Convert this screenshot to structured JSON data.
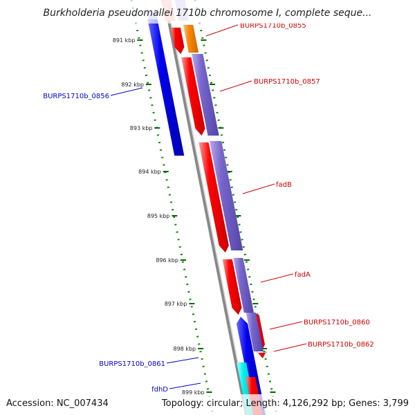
{
  "title": "Burkholderia pseudomallei 1710b chromosome I, complete seque...",
  "footer": {
    "accession": "Accession: NC_007434",
    "topology": "Topology: circular; Length: 4,126,292 bp; Genes: 3,799"
  },
  "ticks": [
    "891 kbp",
    "892 kbp",
    "893 kbp",
    "894 kbp",
    "895 kbp",
    "896 kbp",
    "897 kbp",
    "898 kbp",
    "899 kbp"
  ],
  "gene_labels": [
    {
      "text": "BURPS1710b_0855",
      "color": "#cc0000"
    },
    {
      "text": "BURPS1710b_0857",
      "color": "#cc0000"
    },
    {
      "text": "fadB",
      "color": "#cc0000"
    },
    {
      "text": "fadA",
      "color": "#cc0000"
    },
    {
      "text": "BURPS1710b_0860",
      "color": "#cc0000"
    },
    {
      "text": "BURPS1710b_0862",
      "color": "#cc0000"
    },
    {
      "text": "BURPS1710b_0856",
      "color": "#0000cc"
    },
    {
      "text": "BURPS1710b_0861",
      "color": "#0000cc"
    },
    {
      "text": "fdhD",
      "color": "#0000cc"
    }
  ],
  "colors": {
    "forward_gene": "#ff0000",
    "reverse_gene": "#0000ee",
    "cog_forward": "#7766cc",
    "orange_feature": "#ff8800",
    "cyan_feature": "#00eeee",
    "backbone": "#888888",
    "tick_marks": "#006600"
  }
}
